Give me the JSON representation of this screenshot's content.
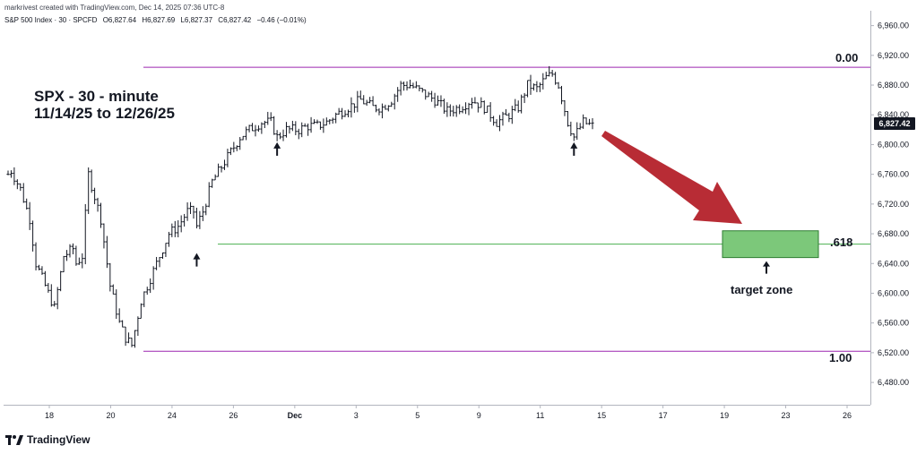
{
  "header": {
    "credit": "markrivest created with TradingView.com, Dec 14, 2025 07:36 UTC-8",
    "symbol": "S&P 500 Index · 30 · SPCFD",
    "open": "O6,827.64",
    "high": "H6,827.69",
    "low": "L6,827.37",
    "close": "C6,827.42",
    "change": "−0.46 (−0.01%)"
  },
  "annotations": {
    "title_line1": "SPX - 30 - minute",
    "title_line2": "11/14/25 to 12/26/25",
    "fib_0": "0.00",
    "fib_618": ".618",
    "fib_1": "1.00",
    "target_label": "target zone",
    "last_price": "6,827.42"
  },
  "branding": {
    "logo_text": "TradingView"
  },
  "colors": {
    "candle": "#131722",
    "fib_line": "#9c27b0",
    "fib_618_line": "#4caf50",
    "target_fill": "#7cc87a",
    "target_border": "#2e7d32",
    "forecast_arrow": "#b82c35"
  },
  "chart_data": {
    "type": "ohlc",
    "ylim": [
      6450,
      6980
    ],
    "y_ticks": [
      "6,960.00",
      "6,920.00",
      "6,880.00",
      "6,840.00",
      "6,800.00",
      "6,760.00",
      "6,720.00",
      "6,680.00",
      "6,640.00",
      "6,600.00",
      "6,560.00",
      "6,520.00",
      "6,480.00"
    ],
    "x_ticks": [
      "18",
      "20",
      "24",
      "26",
      "Dec",
      "3",
      "5",
      "9",
      "11",
      "15",
      "17",
      "19",
      "23",
      "26"
    ],
    "path": [
      [
        0,
        6760
      ],
      [
        1,
        6765
      ],
      [
        4,
        6740
      ],
      [
        7,
        6700
      ],
      [
        9,
        6640
      ],
      [
        13,
        6600
      ],
      [
        15,
        6580
      ],
      [
        18,
        6650
      ],
      [
        21,
        6660
      ],
      [
        22,
        6640
      ],
      [
        24,
        6650
      ],
      [
        26,
        6760
      ],
      [
        30,
        6700
      ],
      [
        33,
        6610
      ],
      [
        36,
        6560
      ],
      [
        38,
        6540
      ],
      [
        40,
        6530
      ],
      [
        43,
        6590
      ],
      [
        46,
        6620
      ],
      [
        49,
        6650
      ],
      [
        52,
        6680
      ],
      [
        55,
        6690
      ],
      [
        58,
        6710
      ],
      [
        60,
        6710
      ],
      [
        61,
        6690
      ],
      [
        63,
        6710
      ],
      [
        66,
        6750
      ],
      [
        69,
        6770
      ],
      [
        72,
        6790
      ],
      [
        75,
        6810
      ],
      [
        78,
        6820
      ],
      [
        82,
        6830
      ],
      [
        85,
        6830
      ],
      [
        87,
        6810
      ],
      [
        90,
        6820
      ],
      [
        94,
        6820
      ],
      [
        97,
        6825
      ],
      [
        100,
        6825
      ],
      [
        103,
        6830
      ],
      [
        106,
        6840
      ],
      [
        110,
        6850
      ],
      [
        114,
        6860
      ],
      [
        118,
        6850
      ],
      [
        121,
        6850
      ],
      [
        124,
        6860
      ],
      [
        127,
        6880
      ],
      [
        130,
        6880
      ],
      [
        134,
        6870
      ],
      [
        138,
        6860
      ],
      [
        142,
        6845
      ],
      [
        146,
        6850
      ],
      [
        150,
        6860
      ],
      [
        154,
        6850
      ],
      [
        158,
        6830
      ],
      [
        162,
        6840
      ],
      [
        165,
        6850
      ],
      [
        168,
        6880
      ],
      [
        171,
        6875
      ],
      [
        174,
        6890
      ],
      [
        176,
        6895
      ],
      [
        178,
        6880
      ],
      [
        181,
        6830
      ],
      [
        183,
        6810
      ],
      [
        186,
        6830
      ],
      [
        189,
        6825
      ]
    ],
    "reference_lines": [
      {
        "label": "0.00",
        "value": 6904
      },
      {
        "label": ".618",
        "value": 6666
      },
      {
        "label": "1.00",
        "value": 6522
      }
    ],
    "target_zone": {
      "label": "target zone",
      "low": 6648,
      "high": 6684
    },
    "markers": [
      {
        "type": "up-arrow",
        "bar": 61,
        "value": 6648
      },
      {
        "type": "up-arrow",
        "bar": 87,
        "value": 6797
      },
      {
        "type": "up-arrow",
        "bar": 183,
        "value": 6797
      }
    ]
  }
}
